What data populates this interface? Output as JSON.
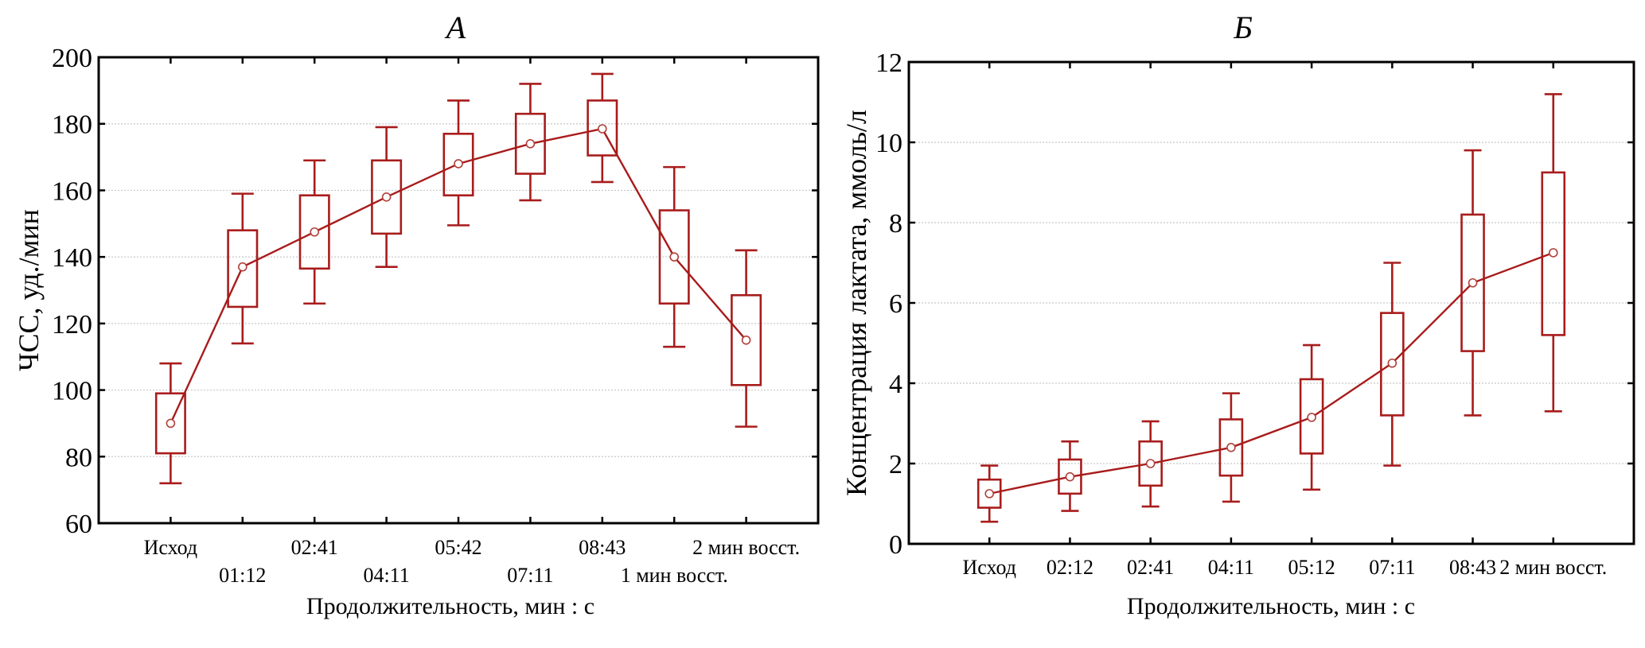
{
  "chart_data": [
    {
      "type": "box",
      "title": "А",
      "xlabel": "Продолжительность, мин : с",
      "ylabel": "ЧСС, уд./мин",
      "ylim": [
        60,
        200
      ],
      "yticks": [
        "60",
        "80",
        "100",
        "120",
        "140",
        "160",
        "180",
        "200"
      ],
      "grid": true,
      "color": "#a81c1c",
      "categories": [
        "Исход",
        "01:12",
        "02:41",
        "04:11",
        "05:42",
        "07:11",
        "08:43",
        "1 мин восст.",
        "2 мин восст."
      ],
      "series": [
        {
          "name": "whisker_high",
          "values": [
            108,
            159,
            169,
            179,
            187,
            192,
            195,
            167,
            142
          ]
        },
        {
          "name": "box_high",
          "values": [
            99,
            148,
            158.5,
            169,
            177,
            183,
            187,
            154,
            128.5
          ]
        },
        {
          "name": "mean",
          "values": [
            90,
            137,
            147.5,
            158,
            168,
            174,
            178.5,
            140,
            115
          ]
        },
        {
          "name": "box_low",
          "values": [
            81,
            125,
            136.5,
            147,
            158.5,
            165,
            170.5,
            126,
            101.5
          ]
        },
        {
          "name": "whisker_low",
          "values": [
            72,
            114,
            126,
            137,
            149.5,
            157,
            162.5,
            113,
            89
          ]
        }
      ]
    },
    {
      "type": "box",
      "title": "Б",
      "xlabel": "Продолжительность, мин : с",
      "ylabel": "Концентрация лактата, ммоль/л",
      "ylim": [
        0,
        12
      ],
      "yticks": [
        "0",
        "2",
        "4",
        "6",
        "8",
        "10",
        "12"
      ],
      "grid": true,
      "color": "#a81c1c",
      "categories": [
        "Исход",
        "02:12",
        "02:41",
        "04:11",
        "05:12",
        "07:11",
        "08:43",
        "2 мин восст."
      ],
      "series": [
        {
          "name": "whisker_high",
          "values": [
            1.95,
            2.55,
            3.05,
            3.75,
            4.95,
            7.0,
            9.8,
            11.2
          ]
        },
        {
          "name": "box_high",
          "values": [
            1.6,
            2.1,
            2.55,
            3.1,
            4.1,
            5.75,
            8.2,
            9.25
          ]
        },
        {
          "name": "mean",
          "values": [
            1.25,
            1.67,
            2.0,
            2.4,
            3.15,
            4.5,
            6.5,
            7.25
          ]
        },
        {
          "name": "box_low",
          "values": [
            0.9,
            1.25,
            1.45,
            1.7,
            2.25,
            3.2,
            4.8,
            5.2
          ]
        },
        {
          "name": "whisker_low",
          "values": [
            0.55,
            0.82,
            0.93,
            1.05,
            1.35,
            1.95,
            3.2,
            3.3
          ]
        }
      ]
    }
  ]
}
